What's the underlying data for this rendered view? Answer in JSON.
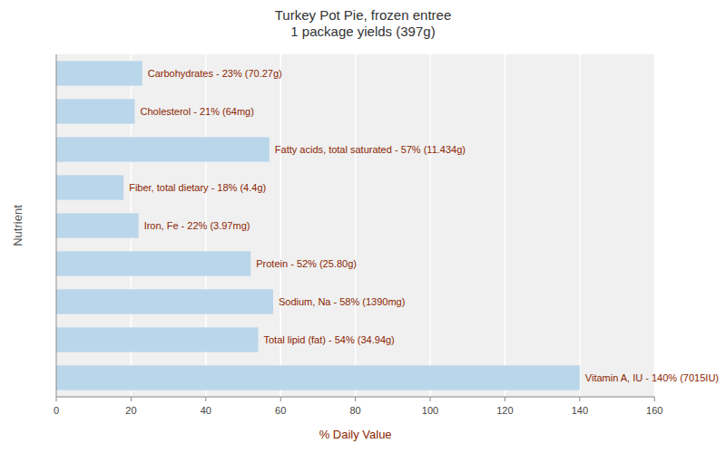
{
  "chart_data": {
    "type": "bar",
    "orientation": "horizontal",
    "title": "Turkey Pot Pie, frozen entree\n1 package yields (397g)",
    "x_label": "% Daily Value",
    "y_label": "Nutrient",
    "categories": [
      "Carbohydrates - 23% (70.27g)",
      "Cholesterol - 21% (64mg)",
      "Fatty acids, total saturated - 57% (11.434g)",
      "Fiber, total dietary - 18% (4.4g)",
      "Iron, Fe - 22% (3.97mg)",
      "Protein - 52% (25.80g)",
      "Sodium, Na - 58% (1390mg)",
      "Total lipid (fat) - 54% (34.94g)",
      "Vitamin A, IU - 140% (7015IU)"
    ],
    "values": [
      23,
      21,
      57,
      18,
      22,
      52,
      58,
      54,
      140
    ],
    "color": "#bad6eb",
    "xlim": [
      0,
      160
    ],
    "xticks": [
      0,
      20,
      40,
      60,
      80,
      100,
      120,
      140,
      160
    ],
    "grid": true,
    "tick_labels": "x"
  }
}
